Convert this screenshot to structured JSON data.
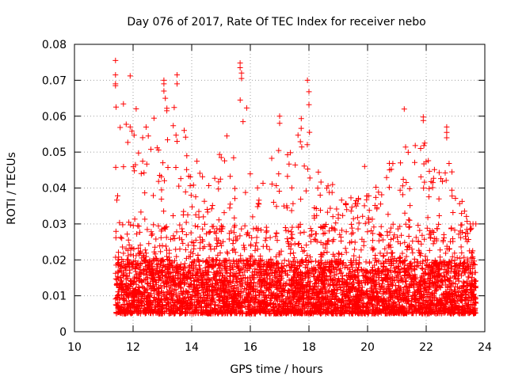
{
  "chart_data": {
    "type": "scatter",
    "title": "Day 076 of 2017, Rate Of TEC Index for receiver nebo",
    "xlabel": "GPS time / hours",
    "ylabel": "ROTI / TECUs",
    "xlim": [
      10,
      24
    ],
    "ylim": [
      0,
      0.08
    ],
    "xticks": [
      10,
      12,
      14,
      16,
      18,
      20,
      22,
      24
    ],
    "xtick_labels": [
      "10",
      "12",
      "14",
      "16",
      "18",
      "20",
      "22",
      "24"
    ],
    "yticks": [
      0,
      0.01,
      0.02,
      0.03,
      0.04,
      0.05,
      0.06,
      0.07,
      0.08
    ],
    "ytick_labels": [
      "0",
      "0.01",
      "0.02",
      "0.03",
      "0.04",
      "0.05",
      "0.06",
      "0.07",
      "0.08"
    ],
    "grid": true,
    "marker": "+",
    "marker_color": "#ff0000",
    "series": [
      {
        "name": "ROTI",
        "x_range": [
          11.4,
          23.7
        ],
        "approx_point_count": 5000,
        "typical_range": [
          0.005,
          0.03
        ],
        "envelope": [
          {
            "x": 11.5,
            "max": 0.075
          },
          {
            "x": 12.0,
            "max": 0.071
          },
          {
            "x": 13.0,
            "max": 0.07
          },
          {
            "x": 13.5,
            "max": 0.072
          },
          {
            "x": 14.5,
            "max": 0.048
          },
          {
            "x": 15.7,
            "max": 0.075
          },
          {
            "x": 16.5,
            "max": 0.055
          },
          {
            "x": 17.0,
            "max": 0.06
          },
          {
            "x": 18.0,
            "max": 0.07
          },
          {
            "x": 19.0,
            "max": 0.045
          },
          {
            "x": 20.0,
            "max": 0.046
          },
          {
            "x": 21.3,
            "max": 0.062
          },
          {
            "x": 21.9,
            "max": 0.06
          },
          {
            "x": 22.7,
            "max": 0.057
          },
          {
            "x": 23.7,
            "max": 0.033
          }
        ],
        "highlights": [
          {
            "x": 11.4,
            "y": 0.0755
          },
          {
            "x": 11.4,
            "y": 0.0715
          },
          {
            "x": 11.4,
            "y": 0.069
          },
          {
            "x": 11.4,
            "y": 0.0685
          },
          {
            "x": 11.9,
            "y": 0.0712
          },
          {
            "x": 11.9,
            "y": 0.057
          },
          {
            "x": 13.05,
            "y": 0.07
          },
          {
            "x": 13.05,
            "y": 0.069
          },
          {
            "x": 13.05,
            "y": 0.067
          },
          {
            "x": 13.1,
            "y": 0.065
          },
          {
            "x": 13.15,
            "y": 0.0615
          },
          {
            "x": 13.5,
            "y": 0.0715
          },
          {
            "x": 13.5,
            "y": 0.069
          },
          {
            "x": 13.5,
            "y": 0.053
          },
          {
            "x": 15.2,
            "y": 0.0545
          },
          {
            "x": 15.65,
            "y": 0.0748
          },
          {
            "x": 15.65,
            "y": 0.0735
          },
          {
            "x": 15.7,
            "y": 0.072
          },
          {
            "x": 15.7,
            "y": 0.0705
          },
          {
            "x": 15.75,
            "y": 0.0585
          },
          {
            "x": 17.0,
            "y": 0.06
          },
          {
            "x": 17.0,
            "y": 0.058
          },
          {
            "x": 17.95,
            "y": 0.07
          },
          {
            "x": 18.0,
            "y": 0.0668
          },
          {
            "x": 18.0,
            "y": 0.0632
          },
          {
            "x": 19.9,
            "y": 0.046
          },
          {
            "x": 21.25,
            "y": 0.062
          },
          {
            "x": 21.9,
            "y": 0.0598
          },
          {
            "x": 21.9,
            "y": 0.0588
          },
          {
            "x": 21.95,
            "y": 0.0525
          },
          {
            "x": 22.7,
            "y": 0.057
          },
          {
            "x": 22.7,
            "y": 0.0555
          },
          {
            "x": 22.7,
            "y": 0.054
          },
          {
            "x": 22.65,
            "y": 0.0442
          }
        ]
      }
    ]
  }
}
